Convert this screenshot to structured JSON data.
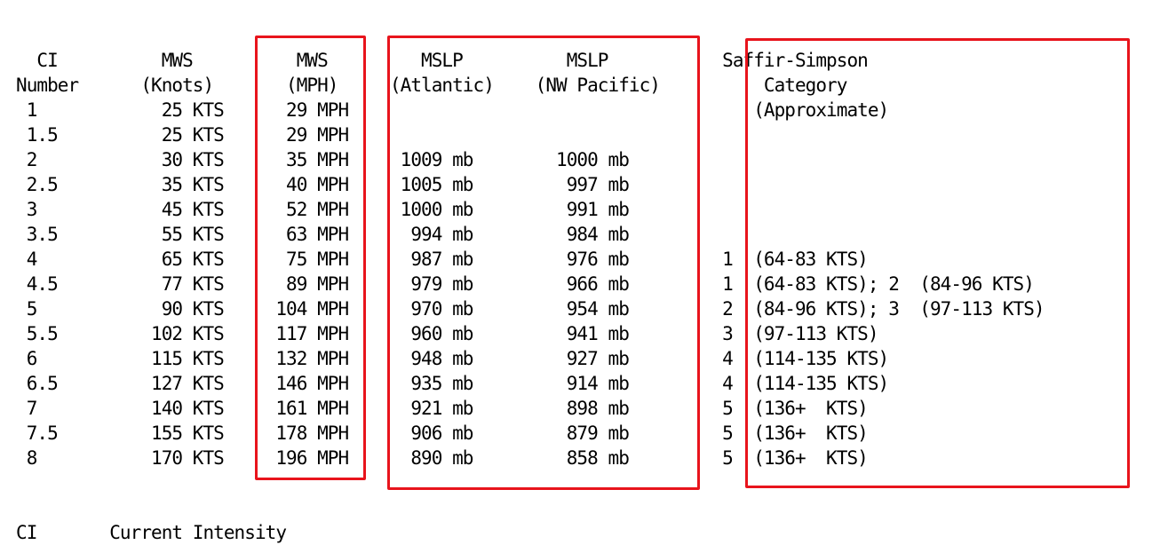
{
  "table": {
    "lines": [
      "  CI          MWS          MWS         MSLP          MSLP           Saffir-Simpson",
      "Number      (Knots)       (MPH)     (Atlantic)    (NW Pacific)          Category",
      " 1            25 KTS      29 MPH                                       (Approximate)",
      " 1.5          25 KTS      29 MPH",
      " 2            30 KTS      35 MPH     1009 mb        1000 mb",
      " 2.5          35 KTS      40 MPH     1005 mb         997 mb",
      " 3            45 KTS      52 MPH     1000 mb         991 mb",
      " 3.5          55 KTS      63 MPH      994 mb         984 mb",
      " 4            65 KTS      75 MPH      987 mb         976 mb         1  (64-83 KTS)",
      " 4.5          77 KTS      89 MPH      979 mb         966 mb         1  (64-83 KTS); 2  (84-96 KTS)",
      " 5            90 KTS     104 MPH      970 mb         954 mb         2  (84-96 KTS); 3  (97-113 KTS)",
      " 5.5         102 KTS     117 MPH      960 mb         941 mb         3  (97-113 KTS)",
      " 6           115 KTS     132 MPH      948 mb         927 mb         4  (114-135 KTS)",
      " 6.5         127 KTS     146 MPH      935 mb         914 mb         4  (114-135 KTS)",
      " 7           140 KTS     161 MPH      921 mb         898 mb         5  (136+  KTS)",
      " 7.5         155 KTS     178 MPH      906 mb         879 mb         5  (136+  KTS)",
      " 8           170 KTS     196 MPH      890 mb         858 mb         5  (136+  KTS)"
    ]
  },
  "footnote": {
    "line": "CI       Current Intensity"
  },
  "colors": {
    "box_border": "#e8141c"
  }
}
